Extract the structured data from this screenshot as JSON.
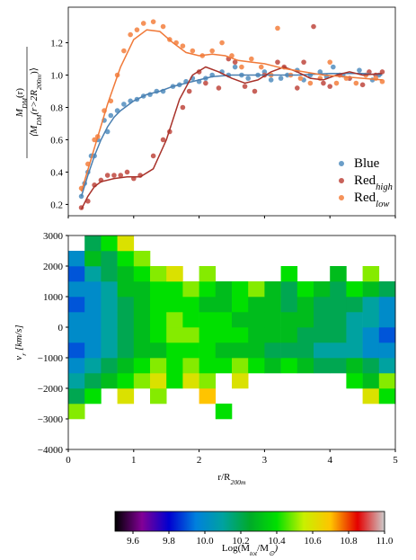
{
  "chart_data": [
    {
      "type": "scatter",
      "ylabel_num": [
        "M",
        "DM",
        "(r)"
      ],
      "ylabel_den": [
        "⟨M",
        "DM",
        "(r>2R",
        "200m",
        ")⟩"
      ],
      "xlim": [
        0,
        5
      ],
      "xticks": [
        0,
        1,
        2,
        3,
        4,
        5
      ],
      "ylim": [
        0.13,
        1.42
      ],
      "yticks": [
        0.2,
        0.4,
        0.6,
        0.8,
        {
          "value": 1,
          "label": "1.0"
        },
        1.2
      ],
      "legend": "lower right",
      "series": [
        {
          "name": "Blue",
          "color": "#6b9ec8",
          "line_color": "#4a7fb0",
          "x": [
            0.2,
            0.25,
            0.3,
            0.35,
            0.4,
            0.45,
            0.55,
            0.6,
            0.65,
            0.75,
            0.85,
            0.95,
            1.05,
            1.15,
            1.25,
            1.35,
            1.45,
            1.6,
            1.7,
            1.8,
            1.9,
            2.0,
            2.1,
            2.2,
            2.35,
            2.45,
            2.55,
            2.65,
            2.75,
            2.9,
            3.0,
            3.1,
            3.25,
            3.35,
            3.5,
            3.6,
            3.7,
            3.85,
            3.95,
            4.05,
            4.2,
            4.3,
            4.45,
            4.55,
            4.65,
            4.75
          ],
          "values": [
            0.25,
            0.33,
            0.4,
            0.5,
            0.5,
            0.6,
            0.72,
            0.65,
            0.75,
            0.78,
            0.82,
            0.84,
            0.85,
            0.87,
            0.88,
            0.9,
            0.9,
            0.93,
            0.94,
            0.96,
            0.98,
            0.96,
            0.98,
            1.0,
            1.02,
            1.0,
            1.05,
            1.0,
            0.98,
            1.0,
            1.02,
            0.97,
            0.98,
            1.0,
            1.03,
            0.97,
            1.0,
            1.02,
            0.99,
            1.05,
            1.0,
            0.98,
            1.03,
            1.0,
            0.97,
            1.0
          ],
          "fit_x": [
            0.2,
            0.3,
            0.4,
            0.5,
            0.6,
            0.7,
            0.8,
            1.0,
            1.2,
            1.4,
            1.6,
            1.8,
            2.0,
            2.2,
            2.5,
            3,
            3.5,
            4,
            4.5,
            4.8
          ],
          "fit_y": [
            0.25,
            0.38,
            0.5,
            0.6,
            0.68,
            0.74,
            0.78,
            0.84,
            0.88,
            0.9,
            0.93,
            0.95,
            0.97,
            0.99,
            1.0,
            1.0,
            1.0,
            1.01,
            1.01,
            1.0
          ]
        },
        {
          "name": "Red",
          "name_sub": "high",
          "color": "#c8625a",
          "line_color": "#a8322a",
          "x": [
            0.2,
            0.3,
            0.4,
            0.5,
            0.6,
            0.7,
            0.8,
            0.9,
            1.0,
            1.1,
            1.3,
            1.45,
            1.55,
            1.75,
            1.85,
            2.0,
            2.1,
            2.3,
            2.45,
            2.55,
            2.7,
            2.85,
            3.0,
            3.2,
            3.3,
            3.5,
            3.6,
            3.75,
            3.9,
            4.0,
            4.15,
            4.3,
            4.5,
            4.6,
            4.7,
            4.8
          ],
          "values": [
            0.18,
            0.22,
            0.32,
            0.35,
            0.38,
            0.38,
            0.38,
            0.4,
            0.36,
            0.38,
            0.5,
            0.6,
            0.65,
            0.8,
            0.9,
            1.02,
            0.95,
            0.92,
            1.1,
            1.08,
            0.93,
            0.9,
            1.0,
            1.08,
            1.05,
            0.92,
            1.08,
            1.3,
            0.95,
            0.93,
            1.0,
            0.98,
            0.94,
            1.02,
            1.0,
            1.02
          ],
          "fit_x": [
            0.2,
            0.3,
            0.4,
            0.5,
            0.7,
            0.9,
            1.1,
            1.3,
            1.5,
            1.7,
            1.9,
            2.1,
            2.3,
            2.5,
            2.7,
            2.9,
            3.1,
            3.3,
            3.5,
            3.7,
            3.9,
            4.1,
            4.3,
            4.5,
            4.8
          ],
          "fit_y": [
            0.17,
            0.25,
            0.31,
            0.34,
            0.36,
            0.37,
            0.37,
            0.42,
            0.6,
            0.85,
            1.0,
            1.05,
            1.02,
            0.98,
            0.95,
            0.97,
            1.02,
            1.05,
            1.02,
            0.98,
            0.97,
            1.0,
            1.02,
            1.0,
            1.01
          ]
        },
        {
          "name": "Red",
          "name_sub": "low",
          "color": "#f5925a",
          "line_color": "#f07a3a",
          "x": [
            0.2,
            0.3,
            0.4,
            0.45,
            0.55,
            0.65,
            0.75,
            0.85,
            0.95,
            1.05,
            1.15,
            1.3,
            1.45,
            1.55,
            1.65,
            1.75,
            1.9,
            2.05,
            2.2,
            2.35,
            2.5,
            2.65,
            2.8,
            2.95,
            3.1,
            3.2,
            3.4,
            3.55,
            3.7,
            3.85,
            4.0,
            4.1,
            4.25,
            4.4,
            4.55,
            4.7,
            4.8
          ],
          "values": [
            0.3,
            0.45,
            0.6,
            0.62,
            0.78,
            0.84,
            1.0,
            1.15,
            1.25,
            1.28,
            1.32,
            1.33,
            1.3,
            1.22,
            1.2,
            1.18,
            1.15,
            1.12,
            1.15,
            1.2,
            1.12,
            1.05,
            1.1,
            1.05,
            1.0,
            1.29,
            1.0,
            0.98,
            0.95,
            0.98,
            1.08,
            0.95,
            0.98,
            0.95,
            1.0,
            0.98,
            0.96
          ],
          "fit_x": [
            0.2,
            0.4,
            0.6,
            0.8,
            1.0,
            1.2,
            1.4,
            1.6,
            1.8,
            2.0,
            2.2,
            2.4,
            2.6,
            2.8,
            3.0,
            3.3,
            3.6,
            3.9,
            4.2,
            4.5,
            4.8
          ],
          "fit_y": [
            0.28,
            0.55,
            0.82,
            1.05,
            1.22,
            1.28,
            1.27,
            1.2,
            1.14,
            1.12,
            1.13,
            1.12,
            1.09,
            1.08,
            1.07,
            1.04,
            1.02,
            1.0,
            0.99,
            0.98,
            0.97
          ]
        }
      ]
    },
    {
      "type": "heatmap",
      "xlabel": [
        "r/R",
        "200m"
      ],
      "ylabel": [
        "v",
        "r",
        " [km/s]"
      ],
      "xlim": [
        0,
        5
      ],
      "xticks": [
        0,
        1,
        2,
        3,
        4,
        5
      ],
      "ylim": [
        -4000,
        3000
      ],
      "yticks": [
        {
          "value": -4000,
          "label": "−4000"
        },
        {
          "value": -3000,
          "label": "−3000"
        },
        {
          "value": -2000,
          "label": "−2000"
        },
        {
          "value": -1000,
          "label": "−1000"
        },
        0,
        1000,
        2000,
        3000
      ],
      "xbins": [
        0,
        0.25,
        0.5,
        0.75,
        1,
        1.25,
        1.5,
        1.75,
        2,
        2.25,
        2.5,
        2.75,
        3,
        3.25,
        3.5,
        3.75,
        4,
        4.25,
        4.5,
        4.75,
        5
      ],
      "ybins": [
        -3000,
        -2500,
        -2000,
        -1500,
        -1000,
        -500,
        0,
        500,
        1000,
        1500,
        2000,
        2500,
        3000
      ],
      "z": [
        [
          10.5,
          null,
          null,
          null,
          null,
          null,
          null,
          null,
          null,
          10.4,
          null,
          null,
          null,
          null,
          null,
          null,
          null,
          null,
          null,
          null
        ],
        [
          10.2,
          10.4,
          null,
          10.6,
          null,
          10.5,
          null,
          null,
          10.7,
          null,
          null,
          null,
          null,
          null,
          null,
          null,
          null,
          null,
          10.6,
          10.4
        ],
        [
          10.1,
          10.2,
          10.3,
          10.4,
          10.5,
          10.6,
          10.4,
          10.6,
          10.5,
          null,
          10.6,
          null,
          null,
          null,
          null,
          null,
          null,
          10.4,
          10.3,
          10.5
        ],
        [
          10.0,
          10.1,
          10.2,
          10.3,
          10.4,
          10.5,
          10.4,
          10.5,
          10.4,
          10.4,
          10.5,
          10.4,
          10.3,
          10.4,
          10.3,
          10.2,
          10.2,
          10.3,
          10.2,
          10.1
        ],
        [
          9.9,
          10.0,
          10.1,
          10.2,
          10.3,
          10.3,
          10.4,
          10.4,
          10.4,
          10.3,
          10.3,
          10.3,
          10.2,
          10.2,
          10.2,
          10.1,
          10.1,
          10.1,
          10.0,
          10.0
        ],
        [
          10.0,
          10.0,
          10.1,
          10.2,
          10.3,
          10.4,
          10.5,
          10.5,
          10.4,
          10.4,
          10.4,
          10.3,
          10.3,
          10.3,
          10.2,
          10.2,
          10.2,
          10.1,
          10.0,
          9.9
        ],
        [
          10.0,
          10.0,
          10.1,
          10.2,
          10.3,
          10.4,
          10.5,
          10.4,
          10.4,
          10.4,
          10.3,
          10.3,
          10.3,
          10.3,
          10.3,
          10.2,
          10.2,
          10.1,
          10.1,
          10.0
        ],
        [
          9.9,
          10.0,
          10.1,
          10.2,
          10.3,
          10.4,
          10.4,
          10.4,
          10.3,
          10.3,
          10.4,
          10.3,
          10.3,
          10.2,
          10.3,
          10.2,
          10.2,
          10.2,
          10.1,
          10.0
        ],
        [
          10.0,
          10.0,
          10.1,
          10.3,
          10.3,
          10.4,
          10.4,
          10.5,
          10.4,
          10.3,
          10.4,
          10.5,
          10.3,
          10.2,
          10.4,
          10.3,
          10.2,
          10.4,
          10.3,
          10.2
        ],
        [
          9.9,
          10.1,
          10.2,
          10.3,
          10.4,
          10.5,
          10.6,
          null,
          10.5,
          null,
          null,
          null,
          null,
          10.4,
          null,
          null,
          10.3,
          null,
          10.5,
          null
        ],
        [
          10.0,
          10.3,
          10.2,
          10.4,
          10.5,
          null,
          null,
          null,
          null,
          null,
          null,
          null,
          null,
          null,
          null,
          null,
          null,
          null,
          null,
          null
        ],
        [
          null,
          10.2,
          10.4,
          10.6,
          null,
          null,
          null,
          null,
          null,
          null,
          null,
          null,
          null,
          null,
          null,
          null,
          null,
          null,
          null,
          null
        ]
      ],
      "colormap": [
        "#000000",
        "#820096",
        "#0000d0",
        "#0080dd",
        "#00a2a0",
        "#00aa2a",
        "#00e000",
        "#c8f000",
        "#ffc400",
        "#e40000",
        "#cccccc"
      ],
      "clim": [
        9.5,
        11.0
      ],
      "cticks": [
        9.6,
        9.8,
        {
          "value": 10,
          "label": "10.0"
        },
        10.2,
        10.4,
        10.6,
        10.8,
        {
          "value": 11,
          "label": "11.0"
        }
      ],
      "clabel": [
        "Log(M",
        "tot",
        "/M",
        "⊙",
        ")"
      ]
    }
  ]
}
